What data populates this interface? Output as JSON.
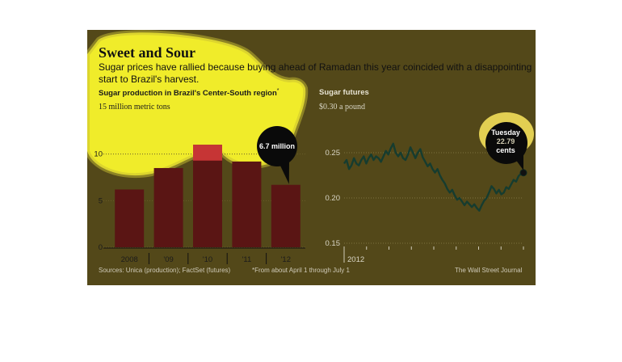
{
  "header": {
    "title": "Sweet and Sour",
    "subtitle": "Sugar prices have rallied because buying ahead of Ramadan this year coincided with a disappointing start to Brazil's harvest."
  },
  "left_chart": {
    "title": "Sugar production in Brazil's Center-South region",
    "title_mark": "*",
    "unit_label": "15 million metric tons",
    "callout": "6.7 million"
  },
  "right_chart": {
    "title": "Sugar futures",
    "unit_label": "$0.30 a pound",
    "callout_line1": "Tuesday",
    "callout_line2": "22.79",
    "callout_line3": "cents"
  },
  "footer": {
    "sources": "Sources: Unica (production); FactSet (futures)",
    "note": "*From about April 1 through July 1",
    "credit": "The Wall Street Journal"
  },
  "colors": {
    "background": "#534819",
    "highlight": "#f0ec2a",
    "bar": "#5a1514",
    "bar_highlight": "#d23838",
    "line": "#163c2f"
  },
  "chart_data": [
    {
      "type": "bar",
      "title": "Sugar production in Brazil's Center-South region*",
      "categories": [
        "2008",
        "'09",
        "'10",
        "'11",
        "'12"
      ],
      "values": [
        6.2,
        8.5,
        11.0,
        9.2,
        6.7
      ],
      "yticks": [
        0,
        5,
        10
      ],
      "ylim": [
        0,
        15
      ],
      "unit": "15 million metric tons",
      "annotation": "6.7 million"
    },
    {
      "type": "line",
      "title": "Sugar futures",
      "unit": "$0.30 a pound",
      "xticks": [
        "2012"
      ],
      "yticks": [
        0.15,
        0.2,
        0.25
      ],
      "ylim": [
        0.15,
        0.3
      ],
      "values": [
        0.238,
        0.242,
        0.232,
        0.236,
        0.244,
        0.238,
        0.236,
        0.242,
        0.246,
        0.238,
        0.244,
        0.248,
        0.242,
        0.246,
        0.244,
        0.24,
        0.246,
        0.252,
        0.248,
        0.255,
        0.26,
        0.25,
        0.246,
        0.25,
        0.244,
        0.242,
        0.248,
        0.256,
        0.25,
        0.244,
        0.25,
        0.254,
        0.245,
        0.24,
        0.235,
        0.238,
        0.232,
        0.228,
        0.232,
        0.225,
        0.22,
        0.216,
        0.21,
        0.206,
        0.209,
        0.203,
        0.198,
        0.2,
        0.196,
        0.192,
        0.196,
        0.193,
        0.19,
        0.193,
        0.189,
        0.186,
        0.192,
        0.197,
        0.2,
        0.206,
        0.213,
        0.21,
        0.205,
        0.209,
        0.204,
        0.206,
        0.212,
        0.21,
        0.215,
        0.22,
        0.218,
        0.224,
        0.227,
        0.2279
      ],
      "annotation": [
        "Tuesday",
        "22.79",
        "cents"
      ]
    }
  ]
}
